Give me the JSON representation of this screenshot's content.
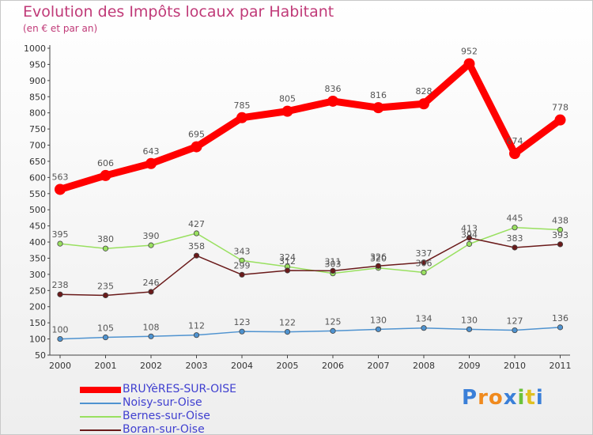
{
  "chart_data": {
    "type": "line",
    "title": "Evolution des Impôts locaux par Habitant",
    "subtitle": "(en € et par an)",
    "x": [
      "2000",
      "2001",
      "2002",
      "2003",
      "2004",
      "2005",
      "2006",
      "2007",
      "2008",
      "2009",
      "2010",
      "2011"
    ],
    "yticks": [
      50,
      100,
      150,
      200,
      250,
      300,
      350,
      400,
      450,
      500,
      550,
      600,
      650,
      700,
      750,
      800,
      850,
      900,
      950,
      1000
    ],
    "ylim": [
      50,
      1000
    ],
    "grid": false,
    "series": [
      {
        "name": "BRUYèRES-SUR-OISE",
        "color": "#ff0000",
        "values": [
          563,
          606,
          643,
          695,
          785,
          805,
          836,
          816,
          828,
          952,
          674,
          778
        ],
        "labels": [
          "563",
          "606",
          "643",
          "695",
          "785",
          "805",
          "836",
          "816",
          "828",
          "952",
          "674",
          "778"
        ]
      },
      {
        "name": "Noisy-sur-Oise",
        "color": "#4f93d0",
        "values": [
          100,
          105,
          108,
          112,
          123,
          122,
          125,
          130,
          134,
          130,
          127,
          136
        ],
        "labels": [
          "100",
          "105",
          "108",
          "112",
          "123",
          "122",
          "125",
          "130",
          "134",
          "130",
          "127",
          "136"
        ]
      },
      {
        "name": "Bernes-sur-Oise",
        "color": "#99e060",
        "values": [
          395,
          380,
          390,
          427,
          343,
          324,
          303,
          320,
          306,
          394,
          445,
          438
        ],
        "labels": [
          "395",
          "380",
          "390",
          "427",
          "343",
          "324",
          "303",
          "320",
          "306",
          "394",
          "445",
          "438"
        ]
      },
      {
        "name": "Boran-sur-Oise",
        "color": "#6a1a1a",
        "values": [
          238,
          235,
          246,
          358,
          299,
          312,
          311,
          326,
          337,
          413,
          383,
          393
        ],
        "labels": [
          "238",
          "235",
          "246",
          "358",
          "299",
          "312",
          "311",
          "326",
          "337",
          "413",
          "383",
          "393"
        ]
      }
    ]
  },
  "legend": [
    {
      "label": "BRUYèRES-SUR-OISE",
      "color": "#ff0000"
    },
    {
      "label": "Noisy-sur-Oise",
      "color": "#4f93d0"
    },
    {
      "label": "Bernes-sur-Oise",
      "color": "#99e060"
    },
    {
      "label": "Boran-sur-Oise",
      "color": "#6a1a1a"
    }
  ],
  "logo": {
    "text": "Proxiti",
    "letters": [
      "P",
      "r",
      "o",
      "x",
      "i",
      "t",
      "i"
    ],
    "colors": [
      "#3a7fd8",
      "#f08a1e",
      "#f08a1e",
      "#3a7fd8",
      "#6cc23a",
      "#e0c020",
      "#3a7fd8"
    ]
  }
}
